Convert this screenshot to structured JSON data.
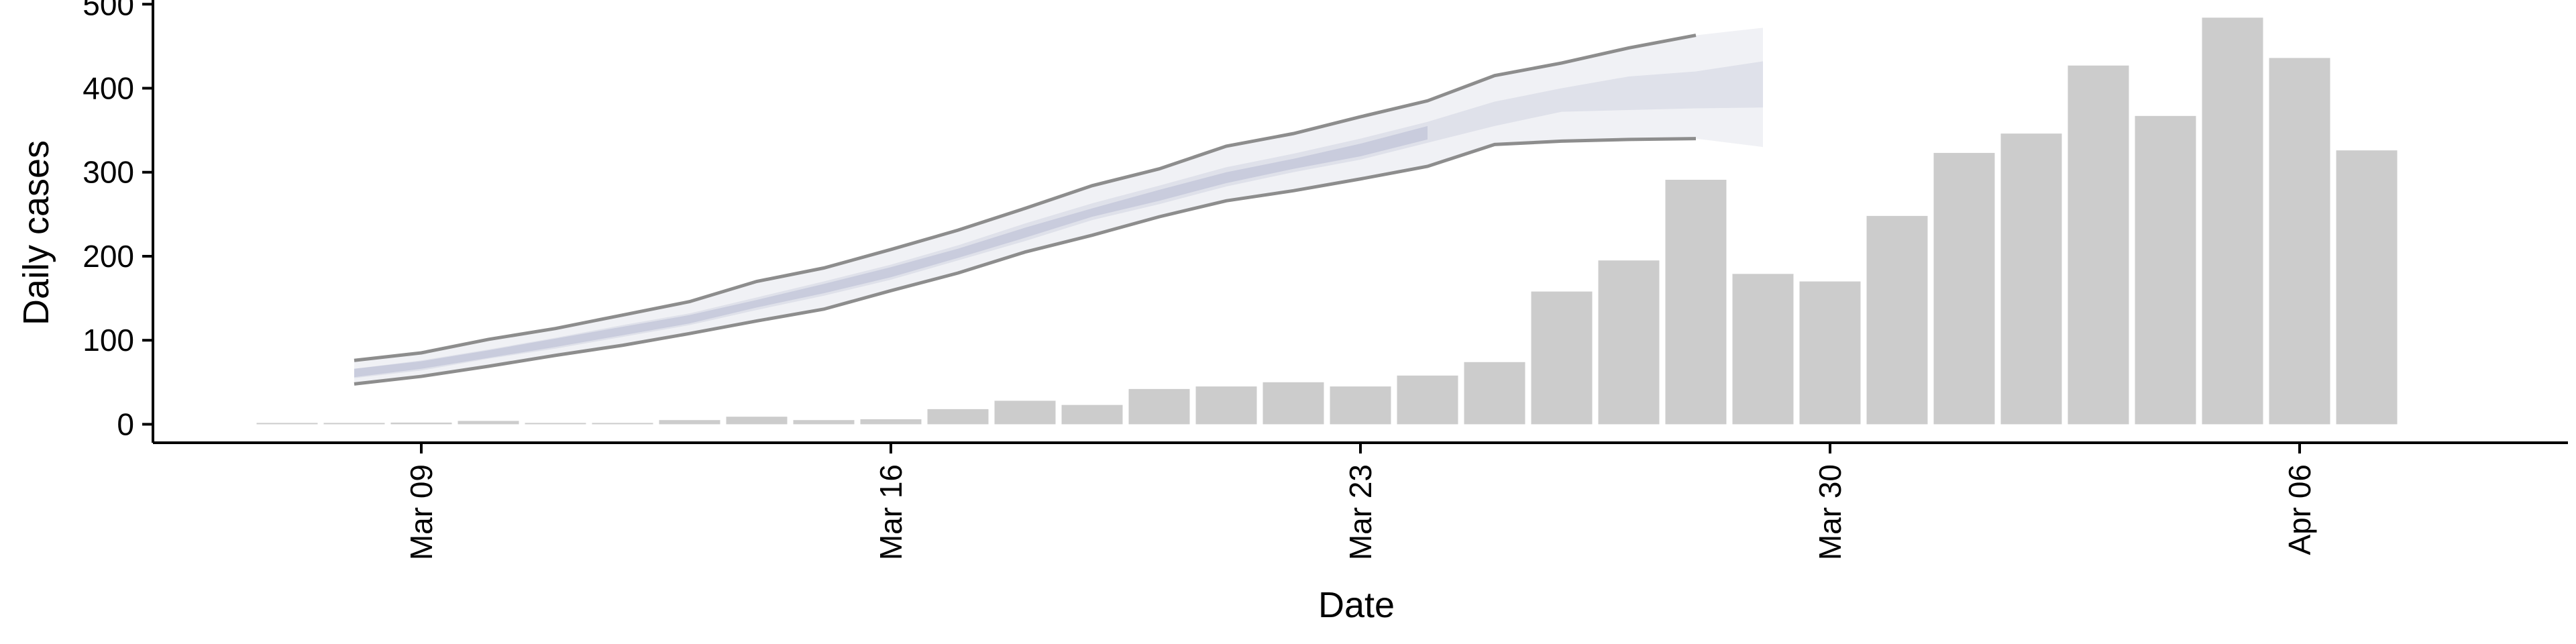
{
  "chart_data": {
    "type": "bar",
    "xlabel": "Date",
    "ylabel": "Daily cases",
    "ylim": [
      -22,
      505
    ],
    "xlim": [
      "2020-03-05",
      "2020-04-10"
    ],
    "grid": false,
    "yticks": [
      0,
      100,
      200,
      300,
      400,
      500
    ],
    "xticks": [
      {
        "date": "2020-03-09",
        "label": "Mar 09"
      },
      {
        "date": "2020-03-16",
        "label": "Mar 16"
      },
      {
        "date": "2020-03-23",
        "label": "Mar 23"
      },
      {
        "date": "2020-03-30",
        "label": "Mar 30"
      },
      {
        "date": "2020-04-06",
        "label": "Apr 06"
      }
    ],
    "bars": {
      "color": "#cccccc",
      "x": [
        "2020-03-07",
        "2020-03-08",
        "2020-03-09",
        "2020-03-10",
        "2020-03-11",
        "2020-03-12",
        "2020-03-13",
        "2020-03-14",
        "2020-03-15",
        "2020-03-16",
        "2020-03-17",
        "2020-03-18",
        "2020-03-19",
        "2020-03-20",
        "2020-03-21",
        "2020-03-22",
        "2020-03-23",
        "2020-03-24",
        "2020-03-25",
        "2020-03-26",
        "2020-03-27",
        "2020-03-28",
        "2020-03-29",
        "2020-03-30",
        "2020-03-31",
        "2020-04-01",
        "2020-04-02",
        "2020-04-03",
        "2020-04-04",
        "2020-04-05",
        "2020-04-06",
        "2020-04-07"
      ],
      "values": [
        1,
        1,
        2,
        4,
        0,
        0,
        5,
        9,
        5,
        6,
        18,
        28,
        23,
        42,
        45,
        50,
        45,
        58,
        74,
        158,
        195,
        291,
        179,
        170,
        248,
        323,
        346,
        427,
        367,
        484,
        436,
        326
      ]
    },
    "series": [
      {
        "kind": "outer-band",
        "color": "#f0f1f5",
        "x": [
          "2020-03-08",
          "2020-03-09",
          "2020-03-10",
          "2020-03-11",
          "2020-03-12",
          "2020-03-13",
          "2020-03-14",
          "2020-03-15",
          "2020-03-16",
          "2020-03-17",
          "2020-03-18",
          "2020-03-19",
          "2020-03-20",
          "2020-03-21",
          "2020-03-22",
          "2020-03-23",
          "2020-03-24",
          "2020-03-25",
          "2020-03-26",
          "2020-03-27",
          "2020-03-28",
          "2020-03-29"
        ],
        "lower": [
          48,
          57,
          69,
          82,
          94,
          108,
          123,
          137,
          159,
          180,
          205,
          225,
          247,
          266,
          278,
          292,
          307,
          333,
          337,
          339,
          340,
          330
        ],
        "upper": [
          76,
          85,
          101,
          114,
          130,
          146,
          170,
          186,
          208,
          231,
          257,
          284,
          304,
          331,
          346,
          366,
          385,
          415,
          430,
          448,
          463,
          472
        ]
      },
      {
        "kind": "inner-band",
        "color": "#dfe1ea",
        "x": [
          "2020-03-08",
          "2020-03-09",
          "2020-03-10",
          "2020-03-11",
          "2020-03-12",
          "2020-03-13",
          "2020-03-14",
          "2020-03-15",
          "2020-03-16",
          "2020-03-17",
          "2020-03-18",
          "2020-03-19",
          "2020-03-20",
          "2020-03-21",
          "2020-03-22",
          "2020-03-23",
          "2020-03-24",
          "2020-03-25",
          "2020-03-26",
          "2020-03-27",
          "2020-03-28",
          "2020-03-29"
        ],
        "lower": [
          55,
          64,
          78,
          90,
          104,
          118,
          136,
          153,
          172,
          195,
          218,
          243,
          262,
          283,
          300,
          315,
          335,
          355,
          372,
          374,
          376,
          377
        ],
        "upper": [
          66,
          76,
          89,
          103,
          118,
          132,
          151,
          170,
          190,
          213,
          239,
          263,
          284,
          306,
          322,
          340,
          360,
          384,
          400,
          414,
          420,
          432
        ]
      },
      {
        "kind": "core-band",
        "color": "#c9ccdd",
        "x": [
          "2020-03-08",
          "2020-03-09",
          "2020-03-10",
          "2020-03-11",
          "2020-03-12",
          "2020-03-13",
          "2020-03-14",
          "2020-03-15",
          "2020-03-16",
          "2020-03-17",
          "2020-03-18",
          "2020-03-19",
          "2020-03-20",
          "2020-03-21",
          "2020-03-22",
          "2020-03-23",
          "2020-03-24"
        ],
        "lower": [
          56,
          66,
          79,
          92,
          106,
          120,
          139,
          156,
          175,
          198,
          222,
          247,
          266,
          287,
          304,
          319,
          339
        ],
        "upper": [
          66,
          75,
          88,
          102,
          116,
          130,
          148,
          167,
          187,
          209,
          234,
          257,
          279,
          300,
          316,
          334,
          355
        ]
      },
      {
        "kind": "upper-line",
        "color": "#8d8d8d",
        "x": [
          "2020-03-08",
          "2020-03-09",
          "2020-03-10",
          "2020-03-11",
          "2020-03-12",
          "2020-03-13",
          "2020-03-14",
          "2020-03-15",
          "2020-03-16",
          "2020-03-17",
          "2020-03-18",
          "2020-03-19",
          "2020-03-20",
          "2020-03-21",
          "2020-03-22",
          "2020-03-23",
          "2020-03-24",
          "2020-03-25",
          "2020-03-26",
          "2020-03-27",
          "2020-03-28"
        ],
        "values": [
          76,
          85,
          101,
          114,
          130,
          146,
          170,
          186,
          208,
          231,
          257,
          284,
          304,
          331,
          346,
          366,
          385,
          415,
          430,
          448,
          463
        ]
      },
      {
        "kind": "lower-line",
        "color": "#8d8d8d",
        "x": [
          "2020-03-08",
          "2020-03-09",
          "2020-03-10",
          "2020-03-11",
          "2020-03-12",
          "2020-03-13",
          "2020-03-14",
          "2020-03-15",
          "2020-03-16",
          "2020-03-17",
          "2020-03-18",
          "2020-03-19",
          "2020-03-20",
          "2020-03-21",
          "2020-03-22",
          "2020-03-23",
          "2020-03-24",
          "2020-03-25",
          "2020-03-26",
          "2020-03-27",
          "2020-03-28"
        ],
        "values": [
          48,
          57,
          69,
          82,
          94,
          108,
          123,
          137,
          159,
          180,
          205,
          225,
          247,
          266,
          278,
          292,
          307,
          333,
          337,
          339,
          340
        ]
      }
    ]
  }
}
